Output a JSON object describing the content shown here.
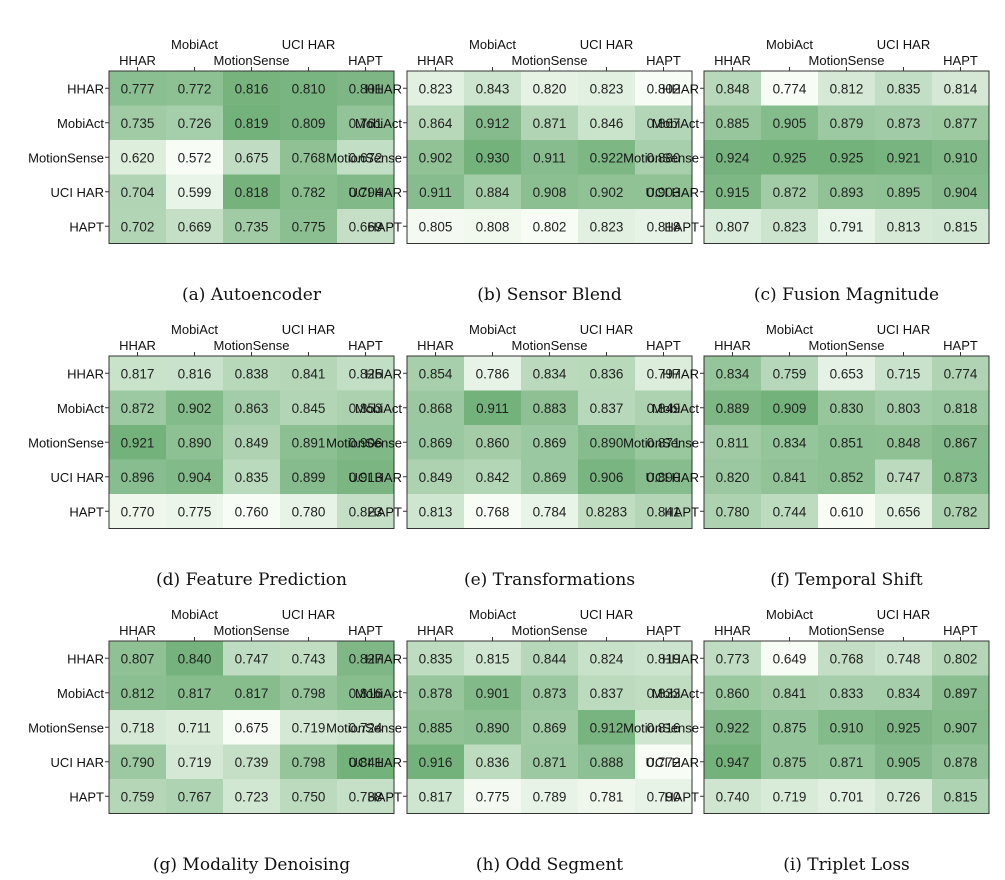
{
  "chart_data": [
    {
      "type": "heatmap",
      "caption": "(a) Autoencoder",
      "rows": [
        "HHAR",
        "MobiAct",
        "MotionSense",
        "UCI HAR",
        "HAPT"
      ],
      "columns": [
        "HHAR",
        "MobiAct",
        "MotionSense",
        "UCI HAR",
        "HAPT"
      ],
      "values": [
        [
          "0.777",
          "0.772",
          "0.816",
          "0.810",
          "0.801"
        ],
        [
          "0.735",
          "0.726",
          "0.819",
          "0.809",
          "0.761"
        ],
        [
          "0.620",
          "0.572",
          "0.675",
          "0.768",
          "0.672"
        ],
        [
          "0.704",
          "0.599",
          "0.818",
          "0.782",
          "0.794"
        ],
        [
          "0.702",
          "0.669",
          "0.735",
          "0.775",
          "0.669"
        ]
      ]
    },
    {
      "type": "heatmap",
      "caption": "(b) Sensor Blend",
      "rows": [
        "HHAR",
        "MobiAct",
        "MotionSense",
        "UCI HAR",
        "HAPT"
      ],
      "columns": [
        "HHAR",
        "MobiAct",
        "MotionSense",
        "UCI HAR",
        "HAPT"
      ],
      "values": [
        [
          "0.823",
          "0.843",
          "0.820",
          "0.823",
          "0.802"
        ],
        [
          "0.864",
          "0.912",
          "0.871",
          "0.846",
          "0.867"
        ],
        [
          "0.902",
          "0.930",
          "0.911",
          "0.922",
          "0.880"
        ],
        [
          "0.911",
          "0.884",
          "0.908",
          "0.902",
          "0.903"
        ],
        [
          "0.805",
          "0.808",
          "0.802",
          "0.823",
          "0.818"
        ]
      ]
    },
    {
      "type": "heatmap",
      "caption": "(c) Fusion Magnitude",
      "rows": [
        "HHAR",
        "MobiAct",
        "MotionSense",
        "UCI HAR",
        "HAPT"
      ],
      "columns": [
        "HHAR",
        "MobiAct",
        "MotionSense",
        "UCI HAR",
        "HAPT"
      ],
      "values": [
        [
          "0.848",
          "0.774",
          "0.812",
          "0.835",
          "0.814"
        ],
        [
          "0.885",
          "0.905",
          "0.879",
          "0.873",
          "0.877"
        ],
        [
          "0.924",
          "0.925",
          "0.925",
          "0.921",
          "0.910"
        ],
        [
          "0.915",
          "0.872",
          "0.893",
          "0.895",
          "0.904"
        ],
        [
          "0.807",
          "0.823",
          "0.791",
          "0.813",
          "0.815"
        ]
      ]
    },
    {
      "type": "heatmap",
      "caption": "(d) Feature Prediction",
      "rows": [
        "HHAR",
        "MobiAct",
        "MotionSense",
        "UCI HAR",
        "HAPT"
      ],
      "columns": [
        "HHAR",
        "MobiAct",
        "MotionSense",
        "UCI HAR",
        "HAPT"
      ],
      "values": [
        [
          "0.817",
          "0.816",
          "0.838",
          "0.841",
          "0.825"
        ],
        [
          "0.872",
          "0.902",
          "0.863",
          "0.845",
          "0.853"
        ],
        [
          "0.921",
          "0.890",
          "0.849",
          "0.891",
          "0.906"
        ],
        [
          "0.896",
          "0.904",
          "0.835",
          "0.899",
          "0.913"
        ],
        [
          "0.770",
          "0.775",
          "0.760",
          "0.780",
          "0.823"
        ]
      ]
    },
    {
      "type": "heatmap",
      "caption": "(e) Transformations",
      "rows": [
        "HHAR",
        "MobiAct",
        "MotionSense",
        "UCI HAR",
        "HAPT"
      ],
      "columns": [
        "HHAR",
        "MobiAct",
        "MotionSense",
        "UCI HAR",
        "HAPT"
      ],
      "values": [
        [
          "0.854",
          "0.786",
          "0.834",
          "0.836",
          "0.797"
        ],
        [
          "0.868",
          "0.911",
          "0.883",
          "0.837",
          "0.849"
        ],
        [
          "0.869",
          "0.860",
          "0.869",
          "0.890",
          "0.871"
        ],
        [
          "0.849",
          "0.842",
          "0.869",
          "0.906",
          "0.890"
        ],
        [
          "0.813",
          "0.768",
          "0.784",
          "0.8283",
          "0.841"
        ]
      ]
    },
    {
      "type": "heatmap",
      "caption": "(f) Temporal Shift",
      "rows": [
        "HHAR",
        "MobiAct",
        "MotionSense",
        "UCI HAR",
        "HAPT"
      ],
      "columns": [
        "HHAR",
        "MobiAct",
        "MotionSense",
        "UCI HAR",
        "HAPT"
      ],
      "values": [
        [
          "0.834",
          "0.759",
          "0.653",
          "0.715",
          "0.774"
        ],
        [
          "0.889",
          "0.909",
          "0.830",
          "0.803",
          "0.818"
        ],
        [
          "0.811",
          "0.834",
          "0.851",
          "0.848",
          "0.867"
        ],
        [
          "0.820",
          "0.841",
          "0.852",
          "0.747",
          "0.873"
        ],
        [
          "0.780",
          "0.744",
          "0.610",
          "0.656",
          "0.782"
        ]
      ]
    },
    {
      "type": "heatmap",
      "caption": "(g) Modality Denoising",
      "rows": [
        "HHAR",
        "MobiAct",
        "MotionSense",
        "UCI HAR",
        "HAPT"
      ],
      "columns": [
        "HHAR",
        "MobiAct",
        "MotionSense",
        "UCI HAR",
        "HAPT"
      ],
      "values": [
        [
          "0.807",
          "0.840",
          "0.747",
          "0.743",
          "0.827"
        ],
        [
          "0.812",
          "0.817",
          "0.817",
          "0.798",
          "0.816"
        ],
        [
          "0.718",
          "0.711",
          "0.675",
          "0.719",
          "0.724"
        ],
        [
          "0.790",
          "0.719",
          "0.739",
          "0.798",
          "0.841"
        ],
        [
          "0.759",
          "0.767",
          "0.723",
          "0.750",
          "0.738"
        ]
      ]
    },
    {
      "type": "heatmap",
      "caption": "(h) Odd Segment",
      "rows": [
        "HHAR",
        "MobiAct",
        "MotionSense",
        "UCI HAR",
        "HAPT"
      ],
      "columns": [
        "HHAR",
        "MobiAct",
        "MotionSense",
        "UCI HAR",
        "HAPT"
      ],
      "values": [
        [
          "0.835",
          "0.815",
          "0.844",
          "0.824",
          "0.819"
        ],
        [
          "0.878",
          "0.901",
          "0.873",
          "0.837",
          "0.833"
        ],
        [
          "0.885",
          "0.890",
          "0.869",
          "0.912",
          "0.816"
        ],
        [
          "0.916",
          "0.836",
          "0.871",
          "0.888",
          "0.772"
        ],
        [
          "0.817",
          "0.775",
          "0.789",
          "0.781",
          "0.790"
        ]
      ]
    },
    {
      "type": "heatmap",
      "caption": "(i) Triplet Loss",
      "rows": [
        "HHAR",
        "MobiAct",
        "MotionSense",
        "UCI HAR",
        "HAPT"
      ],
      "columns": [
        "HHAR",
        "MobiAct",
        "MotionSense",
        "UCI HAR",
        "HAPT"
      ],
      "values": [
        [
          "0.773",
          "0.649",
          "0.768",
          "0.748",
          "0.802"
        ],
        [
          "0.860",
          "0.841",
          "0.833",
          "0.834",
          "0.897"
        ],
        [
          "0.922",
          "0.875",
          "0.910",
          "0.925",
          "0.907"
        ],
        [
          "0.947",
          "0.875",
          "0.871",
          "0.905",
          "0.878"
        ],
        [
          "0.740",
          "0.719",
          "0.701",
          "0.726",
          "0.815"
        ]
      ]
    }
  ],
  "colors": {
    "low": "#f7fcf5",
    "high": "#74b27c",
    "frame": "#333333"
  }
}
